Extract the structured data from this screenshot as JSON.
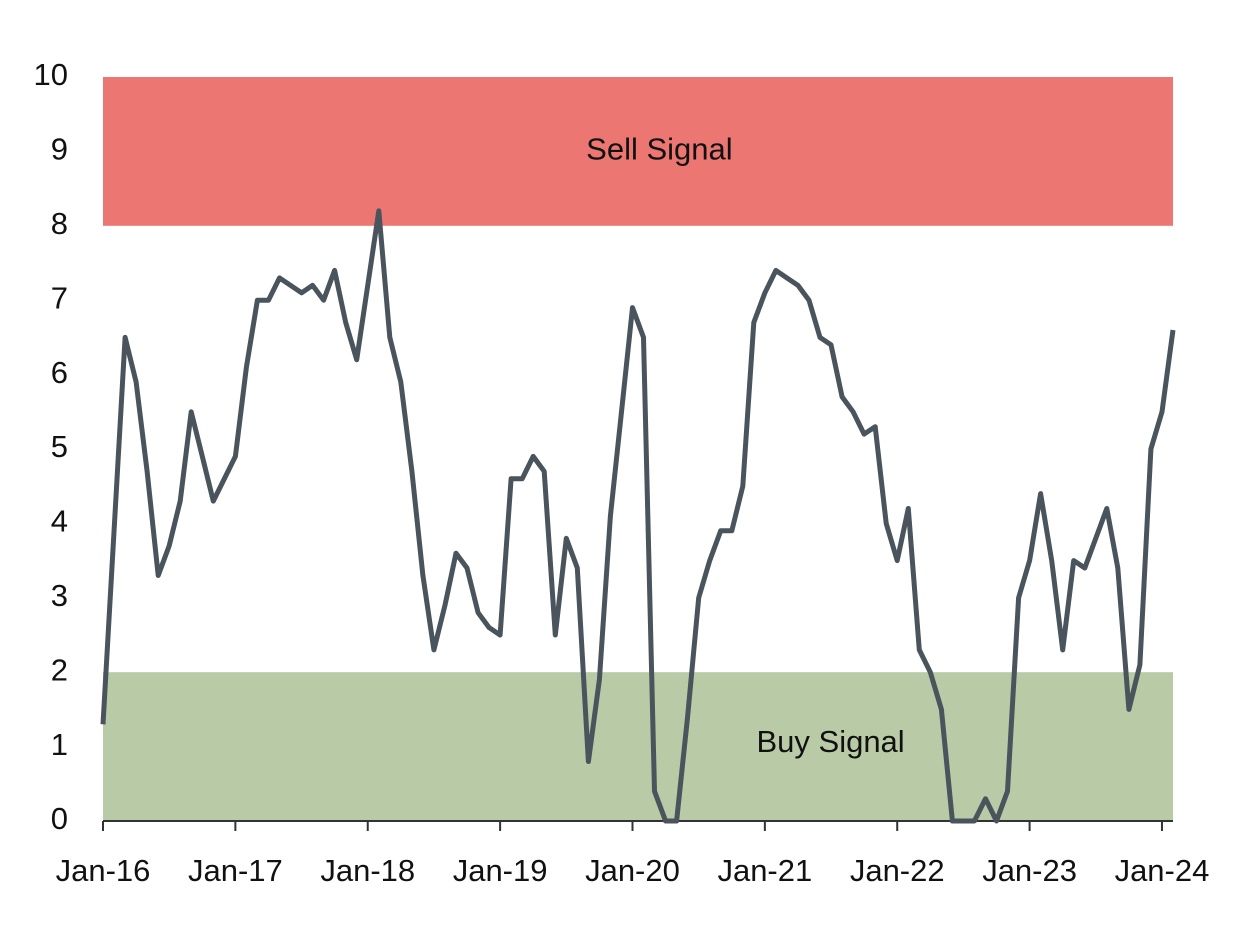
{
  "chart_data": {
    "type": "line",
    "x": [
      "2016-01",
      "2016-03",
      "2016-04",
      "2016-05",
      "2016-06",
      "2016-07",
      "2016-08",
      "2016-09",
      "2016-10",
      "2016-11",
      "2017-01",
      "2017-02",
      "2017-03",
      "2017-04",
      "2017-05",
      "2017-07",
      "2017-08",
      "2017-09",
      "2017-10",
      "2017-11",
      "2017-12",
      "2018-02",
      "2018-03",
      "2018-04",
      "2018-05",
      "2018-06",
      "2018-07",
      "2018-08",
      "2018-09",
      "2018-10",
      "2018-11",
      "2018-12",
      "2019-01",
      "2019-02",
      "2019-03",
      "2019-04",
      "2019-05",
      "2019-06",
      "2019-07",
      "2019-08",
      "2019-09",
      "2019-10",
      "2019-11",
      "2019-12",
      "2020-01",
      "2020-02",
      "2020-03",
      "2020-04",
      "2020-05",
      "2020-06",
      "2020-07",
      "2020-08",
      "2020-09",
      "2020-10",
      "2020-11",
      "2020-12",
      "2021-01",
      "2021-02",
      "2021-03",
      "2021-04",
      "2021-05",
      "2021-06",
      "2021-07",
      "2021-08",
      "2021-09",
      "2021-10",
      "2021-11",
      "2021-12",
      "2022-01",
      "2022-02",
      "2022-03",
      "2022-04",
      "2022-05",
      "2022-06",
      "2022-07",
      "2022-08",
      "2022-09",
      "2022-10",
      "2022-11",
      "2022-12",
      "2023-01",
      "2023-02",
      "2023-03",
      "2023-04",
      "2023-05",
      "2023-06",
      "2023-07",
      "2023-08",
      "2023-09",
      "2023-10",
      "2023-11",
      "2023-12",
      "2024-01",
      "2024-02"
    ],
    "series": [
      {
        "color": "#4a545c",
        "values": [
          1.3,
          6.5,
          5.9,
          4.7,
          3.3,
          3.7,
          4.3,
          5.5,
          4.9,
          4.3,
          4.9,
          6.1,
          7.0,
          7.0,
          7.3,
          7.1,
          7.2,
          7.0,
          7.4,
          6.7,
          6.2,
          8.2,
          6.5,
          5.9,
          4.7,
          3.3,
          2.3,
          2.9,
          3.6,
          3.4,
          2.8,
          2.6,
          2.5,
          4.6,
          4.6,
          4.9,
          4.7,
          2.5,
          3.8,
          3.4,
          0.8,
          1.9,
          4.1,
          5.5,
          6.9,
          6.5,
          0.4,
          0,
          0,
          1.4,
          3.0,
          3.5,
          3.9,
          3.9,
          4.5,
          6.7,
          7.1,
          7.4,
          7.3,
          7.2,
          7.0,
          6.5,
          6.4,
          5.7,
          5.5,
          5.2,
          5.3,
          4.0,
          3.5,
          4.2,
          2.3,
          2.0,
          1.5,
          0,
          0,
          0,
          0.3,
          0,
          0.4,
          3.0,
          3.5,
          4.4,
          3.5,
          2.3,
          3.5,
          3.4,
          3.8,
          4.2,
          3.4,
          1.5,
          2.1,
          5.0,
          5.5,
          6.6
        ]
      }
    ],
    "bands": [
      {
        "label": "Sell Signal",
        "range": [
          8,
          10
        ],
        "color": "#ec7672"
      },
      {
        "label": "Buy Signal",
        "range": [
          0,
          2
        ],
        "color": "#b9caa6"
      }
    ],
    "xlim": [
      "2016-01",
      "2024-02"
    ],
    "xticks": [
      {
        "value": "2016-01",
        "label": "Jan-16"
      },
      {
        "value": "2017-01",
        "label": "Jan-17"
      },
      {
        "value": "2018-01",
        "label": "Jan-18"
      },
      {
        "value": "2019-01",
        "label": "Jan-19"
      },
      {
        "value": "2020-01",
        "label": "Jan-20"
      },
      {
        "value": "2021-01",
        "label": "Jan-21"
      },
      {
        "value": "2022-01",
        "label": "Jan-22"
      },
      {
        "value": "2023-01",
        "label": "Jan-23"
      },
      {
        "value": "2024-01",
        "label": "Jan-24"
      }
    ],
    "ylim": [
      0,
      10
    ],
    "yticks": [
      0,
      1,
      2,
      3,
      4,
      5,
      6,
      7,
      8,
      9,
      10
    ],
    "grid": false
  }
}
